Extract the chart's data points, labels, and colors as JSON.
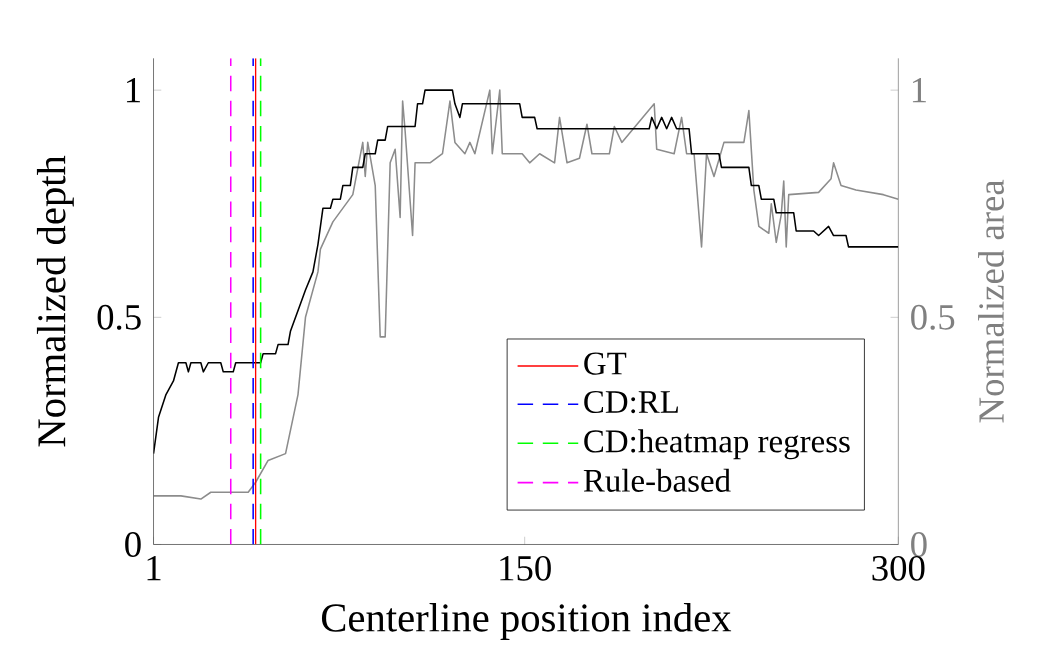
{
  "chart_data": {
    "type": "line",
    "xlabel": "Centerline position index",
    "ylabel": "Normalized depth",
    "y2label": "Normalized area",
    "xlim": [
      1,
      300
    ],
    "xticks": [
      1,
      150,
      300
    ],
    "ylim": [
      0,
      1.07
    ],
    "yticks": [
      0,
      0.5,
      1
    ],
    "y2lim": [
      0,
      1.07
    ],
    "y2ticks": [
      0,
      0.5,
      1
    ],
    "grid": false,
    "legend": "bottom right",
    "line_style": "solid",
    "marker": "none",
    "series": [
      {
        "color": "#000000",
        "x": [
          1,
          3,
          6,
          9,
          11,
          14,
          15,
          16,
          20,
          21,
          23,
          28,
          29,
          33,
          34,
          44,
          45,
          50,
          51,
          55,
          56,
          58,
          60,
          62,
          65,
          67,
          69,
          72,
          73,
          76,
          77,
          80,
          81,
          85,
          86,
          90,
          91,
          94,
          95,
          106,
          107,
          109,
          110,
          121,
          122,
          124,
          125,
          148,
          149,
          154,
          155,
          200,
          201,
          203,
          205,
          207,
          209,
          211,
          216,
          217,
          228,
          229,
          240,
          241,
          244,
          245,
          250,
          251,
          258,
          259,
          266,
          268,
          272,
          274,
          279,
          280,
          300
        ],
        "values": [
          0.2,
          0.28,
          0.33,
          0.36,
          0.4,
          0.4,
          0.38,
          0.4,
          0.4,
          0.38,
          0.4,
          0.4,
          0.38,
          0.38,
          0.4,
          0.4,
          0.42,
          0.42,
          0.44,
          0.44,
          0.47,
          0.5,
          0.53,
          0.56,
          0.6,
          0.66,
          0.74,
          0.74,
          0.76,
          0.76,
          0.79,
          0.79,
          0.83,
          0.83,
          0.86,
          0.86,
          0.89,
          0.89,
          0.92,
          0.92,
          0.97,
          0.97,
          1.0,
          1.0,
          0.97,
          0.94,
          0.97,
          0.97,
          0.94,
          0.94,
          0.915,
          0.915,
          0.94,
          0.915,
          0.94,
          0.915,
          0.94,
          0.915,
          0.915,
          0.86,
          0.86,
          0.83,
          0.83,
          0.79,
          0.79,
          0.76,
          0.76,
          0.73,
          0.73,
          0.69,
          0.69,
          0.68,
          0.7,
          0.68,
          0.68,
          0.655,
          0.655
        ]
      },
      {
        "color": "#8c8c8c",
        "axis": "y2",
        "x": [
          1,
          12,
          20,
          24,
          39,
          42,
          47,
          54,
          59,
          62,
          67,
          68,
          73,
          81,
          85,
          86,
          87,
          90,
          92,
          94,
          96,
          98,
          100,
          101,
          102,
          105,
          106,
          112,
          117,
          120,
          122,
          126,
          128,
          130,
          136,
          137,
          140,
          141,
          149,
          152,
          156,
          162,
          164,
          167,
          172,
          175,
          177,
          184,
          186,
          189,
          202,
          203,
          210,
          213,
          215,
          218,
          221,
          223,
          226,
          230,
          238,
          240,
          242,
          244,
          248,
          249,
          251,
          253,
          254,
          255,
          256,
          268,
          273,
          274,
          277,
          283,
          294,
          300
        ],
        "values": [
          0.107,
          0.107,
          0.1,
          0.115,
          0.115,
          0.137,
          0.185,
          0.2,
          0.33,
          0.5,
          0.6,
          0.65,
          0.71,
          0.77,
          0.885,
          0.81,
          0.885,
          0.79,
          0.457,
          0.457,
          0.84,
          0.87,
          0.72,
          0.976,
          0.91,
          0.68,
          0.84,
          0.84,
          0.86,
          0.976,
          0.885,
          0.86,
          0.885,
          0.86,
          1.0,
          0.86,
          1.0,
          0.86,
          0.86,
          0.84,
          0.86,
          0.84,
          0.94,
          0.84,
          0.85,
          0.925,
          0.86,
          0.86,
          0.92,
          0.885,
          0.97,
          0.87,
          0.86,
          0.94,
          0.86,
          0.86,
          0.655,
          0.86,
          0.81,
          0.885,
          0.885,
          0.955,
          0.78,
          0.7,
          0.685,
          0.75,
          0.665,
          0.726,
          0.8,
          0.655,
          0.77,
          0.775,
          0.805,
          0.84,
          0.79,
          0.78,
          0.77,
          0.76
        ]
      },
      {
        "name": "GT",
        "color": "#ff0000",
        "line_style": "solid",
        "x": [
          42,
          42
        ],
        "values": [
          0,
          1.07
        ]
      },
      {
        "name": "CD:RL",
        "color": "#0000ff",
        "line_style": "dashed",
        "x": [
          41,
          41
        ],
        "values": [
          0,
          1.07
        ]
      },
      {
        "name": "CD:heatmap regress",
        "color": "#00ff00",
        "line_style": "dashed",
        "x": [
          44,
          44
        ],
        "values": [
          0,
          1.07
        ]
      },
      {
        "name": "Rule-based",
        "color": "#ff00ff",
        "line_style": "dashed",
        "x": [
          32,
          32
        ],
        "values": [
          0,
          1.07
        ]
      }
    ]
  }
}
